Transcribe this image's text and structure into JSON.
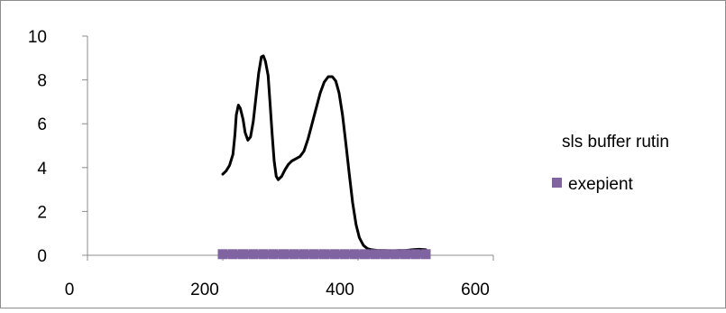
{
  "chart_data": {
    "type": "line",
    "title": "",
    "xlabel": "",
    "ylabel": "",
    "xlim": [
      0,
      600
    ],
    "ylim": [
      0,
      10
    ],
    "x_ticks": [
      0,
      200,
      400,
      600
    ],
    "y_ticks": [
      0,
      2,
      4,
      6,
      8,
      10
    ],
    "grid": false,
    "legend_position": "right",
    "series": [
      {
        "name": "sls buffer rutin",
        "color": "#000000",
        "marker": "none",
        "points": [
          [
            200,
            3.7
          ],
          [
            205,
            3.85
          ],
          [
            210,
            4.1
          ],
          [
            215,
            4.6
          ],
          [
            218,
            5.5
          ],
          [
            220,
            6.4
          ],
          [
            223,
            6.85
          ],
          [
            226,
            6.7
          ],
          [
            230,
            6.2
          ],
          [
            233,
            5.6
          ],
          [
            237,
            5.25
          ],
          [
            241,
            5.4
          ],
          [
            245,
            6.1
          ],
          [
            249,
            7.2
          ],
          [
            253,
            8.3
          ],
          [
            257,
            9.05
          ],
          [
            260,
            9.1
          ],
          [
            263,
            8.85
          ],
          [
            267,
            8.2
          ],
          [
            270,
            6.9
          ],
          [
            273,
            5.5
          ],
          [
            276,
            4.3
          ],
          [
            279,
            3.6
          ],
          [
            282,
            3.45
          ],
          [
            287,
            3.6
          ],
          [
            292,
            3.9
          ],
          [
            297,
            4.15
          ],
          [
            302,
            4.3
          ],
          [
            308,
            4.4
          ],
          [
            314,
            4.5
          ],
          [
            320,
            4.75
          ],
          [
            326,
            5.3
          ],
          [
            332,
            6.0
          ],
          [
            338,
            6.7
          ],
          [
            344,
            7.4
          ],
          [
            350,
            7.9
          ],
          [
            356,
            8.15
          ],
          [
            362,
            8.15
          ],
          [
            367,
            7.95
          ],
          [
            372,
            7.4
          ],
          [
            377,
            6.4
          ],
          [
            382,
            5.1
          ],
          [
            387,
            3.7
          ],
          [
            392,
            2.4
          ],
          [
            397,
            1.4
          ],
          [
            402,
            0.8
          ],
          [
            408,
            0.45
          ],
          [
            414,
            0.3
          ],
          [
            420,
            0.25
          ],
          [
            430,
            0.22
          ],
          [
            440,
            0.22
          ],
          [
            450,
            0.2
          ],
          [
            460,
            0.22
          ],
          [
            470,
            0.22
          ],
          [
            480,
            0.25
          ],
          [
            490,
            0.27
          ],
          [
            500,
            0.25
          ]
        ]
      },
      {
        "name": "exepient",
        "color": "#8064A2",
        "marker": "square",
        "points": [
          [
            200,
            0.05
          ],
          [
            215,
            0.05
          ],
          [
            230,
            0.05
          ],
          [
            245,
            0.05
          ],
          [
            260,
            0.05
          ],
          [
            275,
            0.05
          ],
          [
            290,
            0.05
          ],
          [
            305,
            0.05
          ],
          [
            320,
            0.05
          ],
          [
            335,
            0.05
          ],
          [
            350,
            0.05
          ],
          [
            365,
            0.05
          ],
          [
            380,
            0.05
          ],
          [
            395,
            0.05
          ],
          [
            410,
            0.05
          ],
          [
            425,
            0.05
          ],
          [
            440,
            0.05
          ],
          [
            455,
            0.05
          ],
          [
            470,
            0.05
          ],
          [
            485,
            0.05
          ],
          [
            500,
            0.05
          ]
        ]
      }
    ]
  }
}
